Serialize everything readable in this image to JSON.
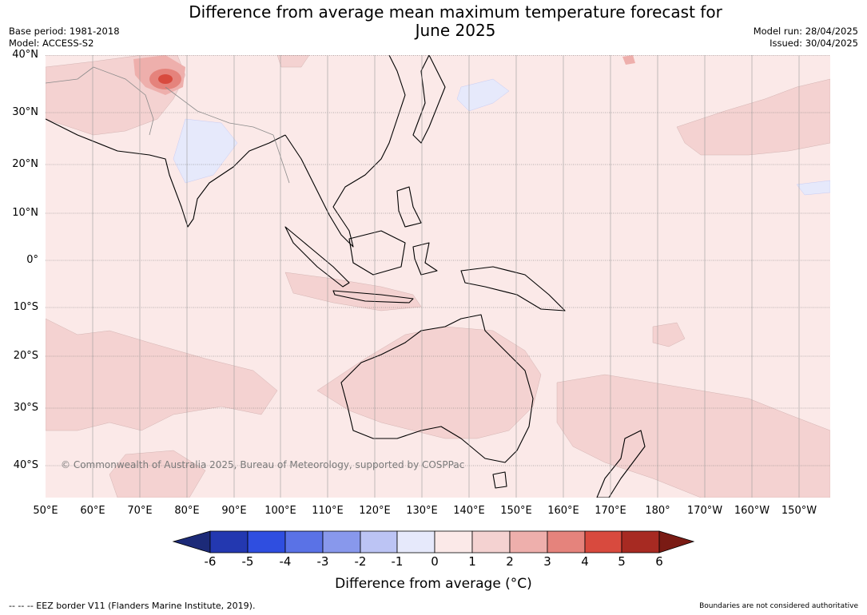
{
  "title": {
    "line1": "Difference from average mean maximum temperature forecast for",
    "line2": "June 2025"
  },
  "meta_left": {
    "base_period": "Base period: 1981-2018",
    "model": "Model: ACCESS-S2"
  },
  "meta_right": {
    "model_run": "Model run: 28/04/2025",
    "issued": "Issued: 30/04/2025"
  },
  "map": {
    "lat_labels": [
      "40°N",
      "30°N",
      "20°N",
      "10°N",
      "0°",
      "10°S",
      "20°S",
      "30°S",
      "40°S"
    ],
    "lon_labels": [
      "50°E",
      "60°E",
      "70°E",
      "80°E",
      "90°E",
      "100°E",
      "110°E",
      "120°E",
      "130°E",
      "140°E",
      "150°E",
      "160°E",
      "170°E",
      "180°",
      "170°W",
      "160°W",
      "150°W"
    ],
    "copyright": "© Commonwealth of Australia 2025, Bureau of Meteorology, supported by COSPPac",
    "background_anomaly_color": "#fbe9e8"
  },
  "colorbar": {
    "ticks": [
      "-6",
      "-5",
      "-4",
      "-3",
      "-2",
      "-1",
      "0",
      "1",
      "2",
      "3",
      "4",
      "5",
      "6"
    ],
    "colors": [
      "#1c2a78",
      "#2338b0",
      "#2f4ee0",
      "#5a72e6",
      "#8898ec",
      "#bcc4f4",
      "#e6e9fb",
      "#fbe9e8",
      "#f4d2d1",
      "#eeafac",
      "#e5837c",
      "#d84a3e",
      "#a72a22",
      "#7a1b14"
    ],
    "label": "Difference from average (°C)"
  },
  "footer": {
    "eez_note": "--  --  -- EEZ border V11 (Flanders Marine Institute, 2019).",
    "disclaimer": "Boundaries are not considered authoritative"
  }
}
